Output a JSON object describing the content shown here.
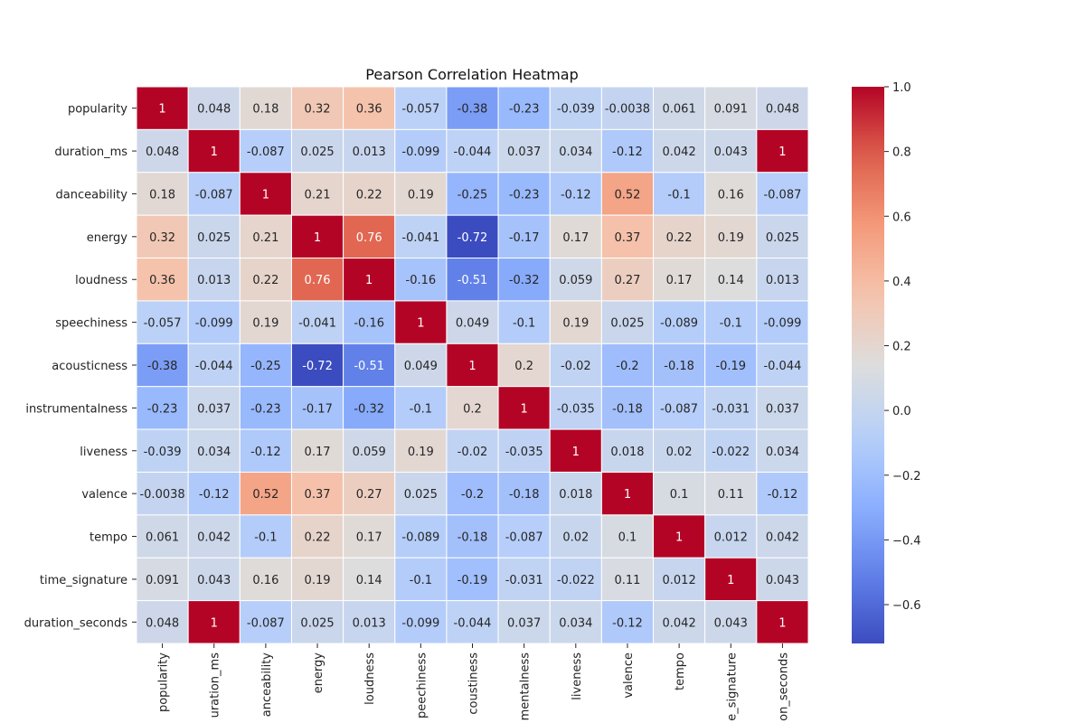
{
  "chart_data": {
    "type": "heatmap",
    "title": "Pearson Correlation Heatmap",
    "row_labels": [
      "popularity",
      "duration_ms",
      "danceability",
      "energy",
      "loudness",
      "speechiness",
      "acousticness",
      "instrumentalness",
      "liveness",
      "valence",
      "tempo",
      "time_signature",
      "duration_seconds"
    ],
    "col_labels": [
      "popularity",
      "duration_ms",
      "danceability",
      "energy",
      "loudness",
      "speechiness",
      "acousticness",
      "instrumentalness",
      "liveness",
      "valence",
      "tempo",
      "time_signature",
      "duration_seconds"
    ],
    "col_labels_visible": [
      "popularity",
      "uration_ms",
      "anceability",
      "energy",
      "loudness",
      "peechiness",
      "coustiness",
      "mentalness",
      "liveness",
      "valence",
      "tempo",
      "e_signature",
      "on_seconds"
    ],
    "values": [
      [
        1,
        0.048,
        0.18,
        0.32,
        0.36,
        -0.057,
        -0.38,
        -0.23,
        -0.039,
        -0.0038,
        0.061,
        0.091,
        0.048
      ],
      [
        0.048,
        1,
        -0.087,
        0.025,
        0.013,
        -0.099,
        -0.044,
        0.037,
        0.034,
        -0.12,
        0.042,
        0.043,
        1
      ],
      [
        0.18,
        -0.087,
        1,
        0.21,
        0.22,
        0.19,
        -0.25,
        -0.23,
        -0.12,
        0.52,
        -0.1,
        0.16,
        -0.087
      ],
      [
        0.32,
        0.025,
        0.21,
        1,
        0.76,
        -0.041,
        -0.72,
        -0.17,
        0.17,
        0.37,
        0.22,
        0.19,
        0.025
      ],
      [
        0.36,
        0.013,
        0.22,
        0.76,
        1,
        -0.16,
        -0.51,
        -0.32,
        0.059,
        0.27,
        0.17,
        0.14,
        0.013
      ],
      [
        -0.057,
        -0.099,
        0.19,
        -0.041,
        -0.16,
        1,
        0.049,
        -0.1,
        0.19,
        0.025,
        -0.089,
        -0.1,
        -0.099
      ],
      [
        -0.38,
        -0.044,
        -0.25,
        -0.72,
        -0.51,
        0.049,
        1,
        0.2,
        -0.02,
        -0.2,
        -0.18,
        -0.19,
        -0.044
      ],
      [
        -0.23,
        0.037,
        -0.23,
        -0.17,
        -0.32,
        -0.1,
        0.2,
        1,
        -0.035,
        -0.18,
        -0.087,
        -0.031,
        0.037
      ],
      [
        -0.039,
        0.034,
        -0.12,
        0.17,
        0.059,
        0.19,
        -0.02,
        -0.035,
        1,
        0.018,
        0.02,
        -0.022,
        0.034
      ],
      [
        -0.0038,
        -0.12,
        0.52,
        0.37,
        0.27,
        0.025,
        -0.2,
        -0.18,
        0.018,
        1,
        0.1,
        0.11,
        -0.12
      ],
      [
        0.061,
        0.042,
        -0.1,
        0.22,
        0.17,
        -0.089,
        -0.18,
        -0.087,
        0.02,
        0.1,
        1,
        0.012,
        0.042
      ],
      [
        0.091,
        0.043,
        0.16,
        0.19,
        0.14,
        -0.1,
        -0.19,
        -0.031,
        -0.022,
        0.11,
        0.012,
        1,
        0.043
      ],
      [
        0.048,
        1,
        -0.087,
        0.025,
        0.013,
        -0.099,
        -0.044,
        0.037,
        0.034,
        -0.12,
        0.042,
        0.043,
        1
      ]
    ],
    "colormap": "coolwarm",
    "vmin": -0.72,
    "vmax": 1.0,
    "colorbar_ticks": [
      1.0,
      0.8,
      0.6,
      0.4,
      0.2,
      0.0,
      -0.2,
      -0.4,
      -0.6
    ],
    "colorbar_tick_labels": [
      "1.0",
      "0.8",
      "0.6",
      "0.4",
      "0.2",
      "0.0",
      "−0.2",
      "−0.4",
      "−0.6"
    ],
    "annotated": true,
    "cell_border_color": "#ffffff"
  }
}
